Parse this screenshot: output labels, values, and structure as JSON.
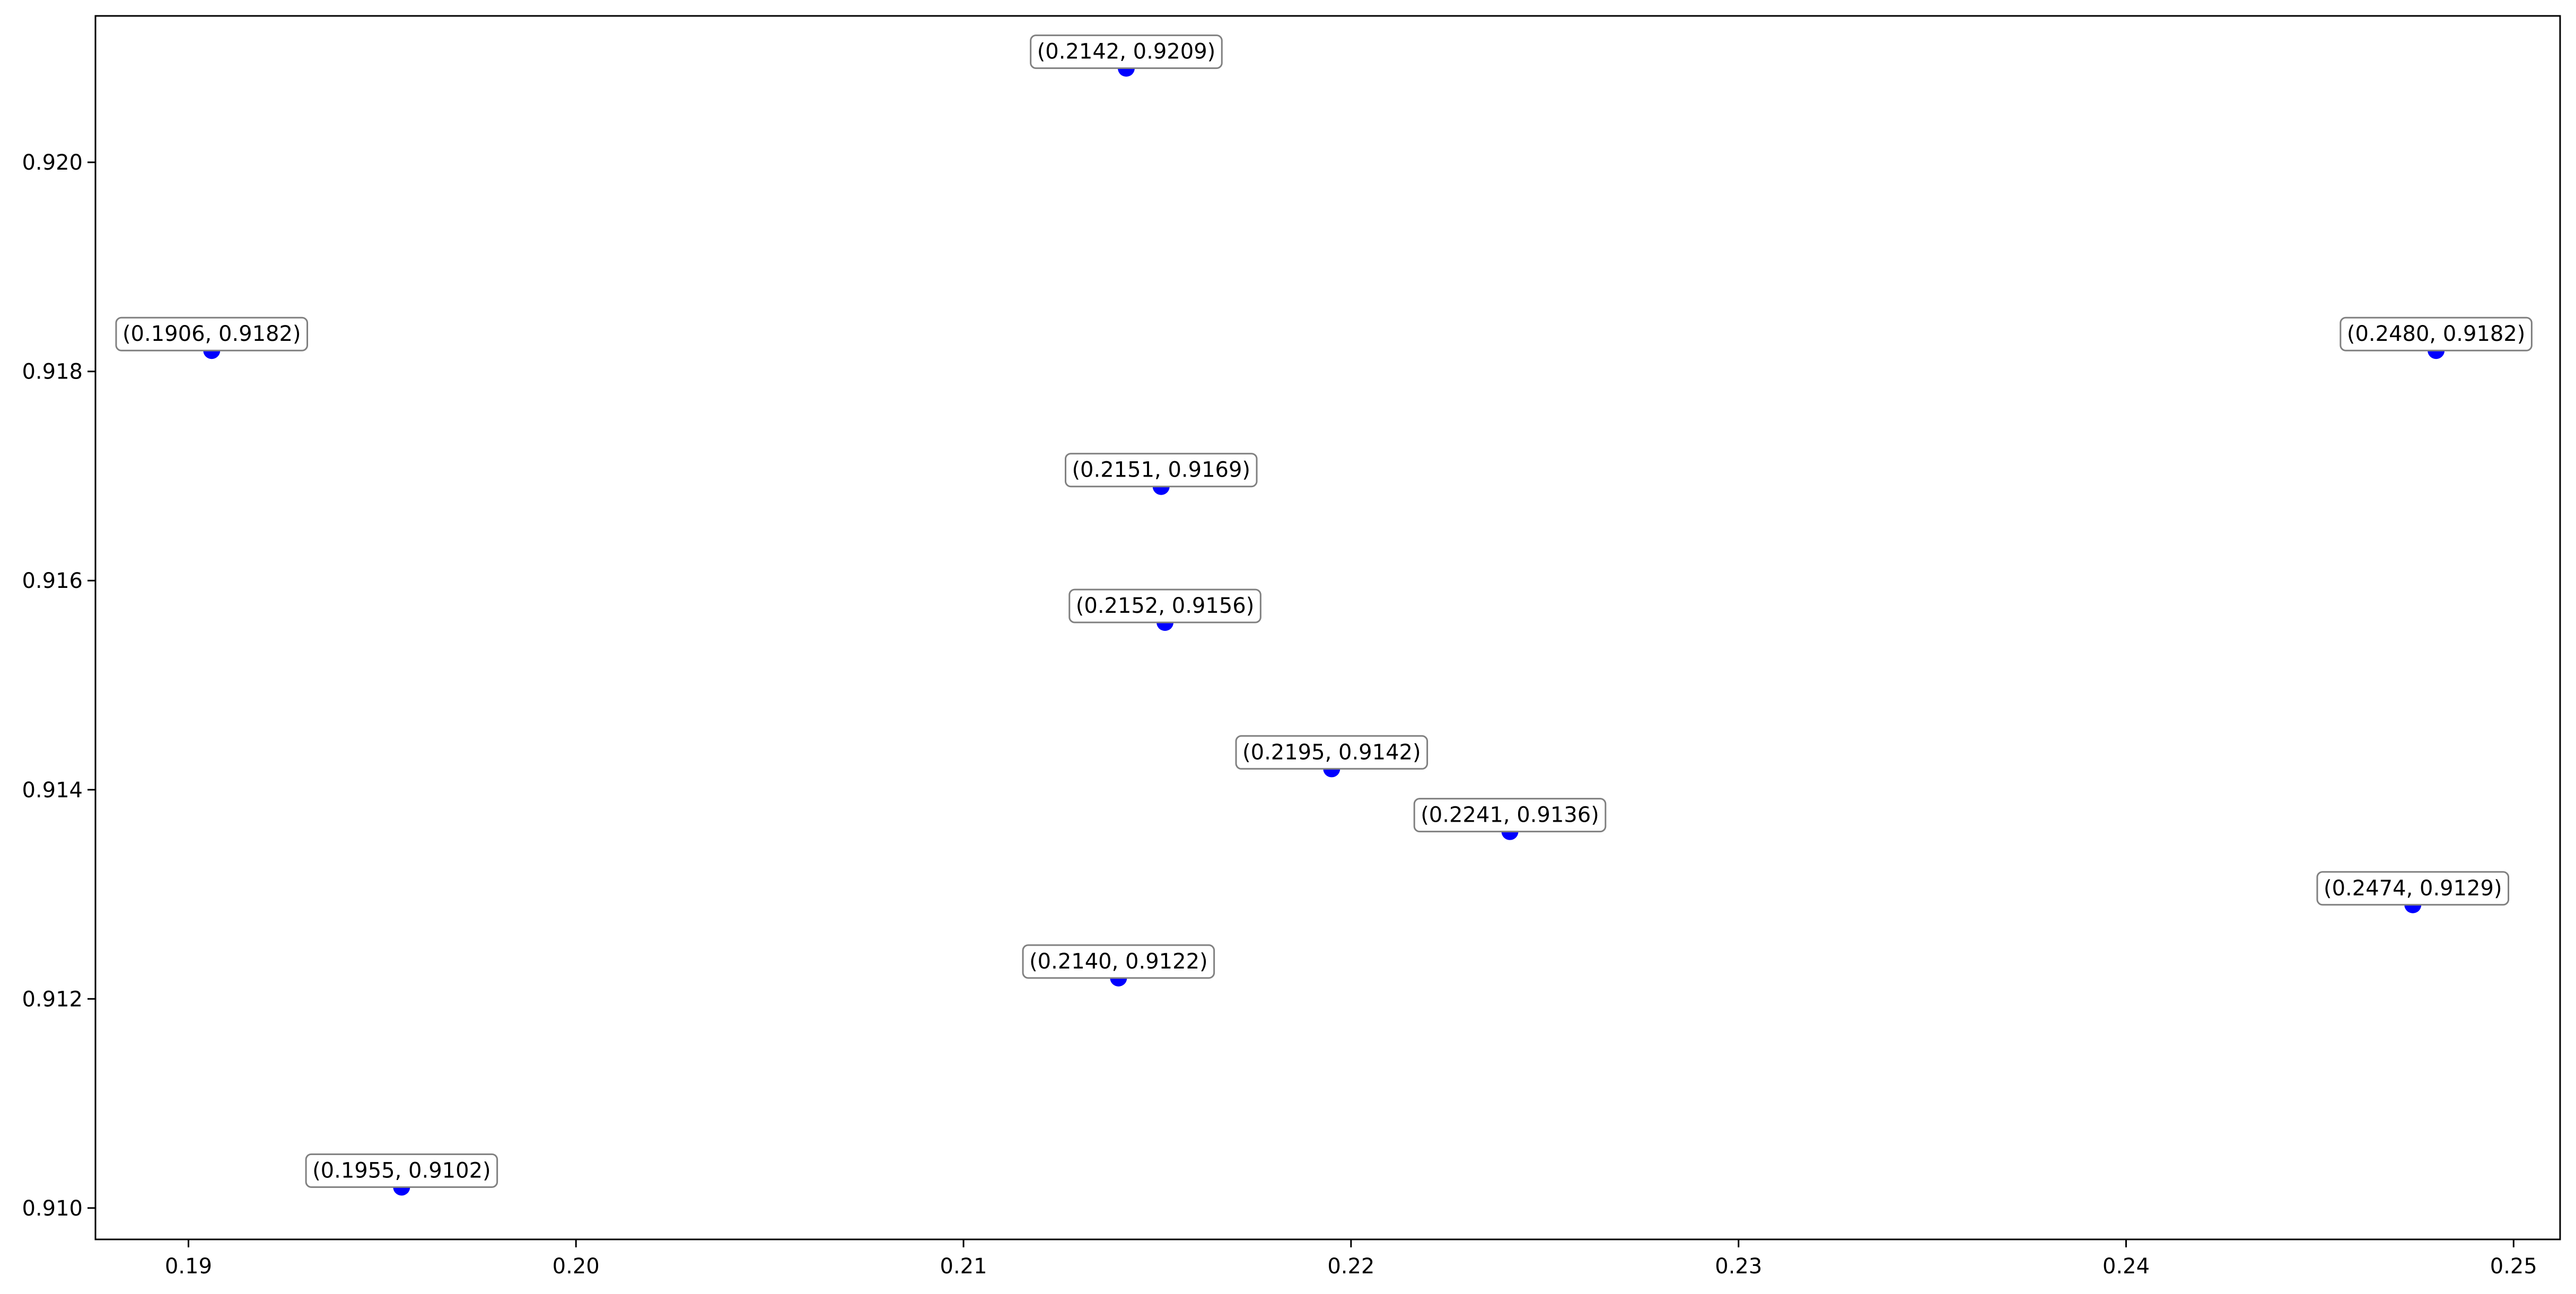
{
  "chart_data": {
    "type": "scatter",
    "title": "",
    "xlabel": "",
    "ylabel": "",
    "xlim": [
      0.1876,
      0.2512
    ],
    "ylim": [
      0.9097,
      0.9214
    ],
    "grid": false,
    "legend": "none",
    "marker_color": "#0000ff",
    "x_ticks": [
      {
        "value": 0.19,
        "label": "0.19"
      },
      {
        "value": 0.2,
        "label": "0.20"
      },
      {
        "value": 0.21,
        "label": "0.21"
      },
      {
        "value": 0.22,
        "label": "0.22"
      },
      {
        "value": 0.23,
        "label": "0.23"
      },
      {
        "value": 0.24,
        "label": "0.24"
      },
      {
        "value": 0.25,
        "label": "0.25"
      }
    ],
    "y_ticks": [
      {
        "value": 0.91,
        "label": "0.910"
      },
      {
        "value": 0.912,
        "label": "0.912"
      },
      {
        "value": 0.914,
        "label": "0.914"
      },
      {
        "value": 0.916,
        "label": "0.916"
      },
      {
        "value": 0.918,
        "label": "0.918"
      },
      {
        "value": 0.92,
        "label": "0.920"
      }
    ],
    "points": [
      {
        "x": 0.2142,
        "y": 0.9209,
        "label": "(0.2142, 0.9209)"
      },
      {
        "x": 0.1906,
        "y": 0.9182,
        "label": "(0.1906, 0.9182)"
      },
      {
        "x": 0.248,
        "y": 0.9182,
        "label": "(0.2480, 0.9182)"
      },
      {
        "x": 0.2151,
        "y": 0.9169,
        "label": "(0.2151, 0.9169)"
      },
      {
        "x": 0.2152,
        "y": 0.9156,
        "label": "(0.2152, 0.9156)"
      },
      {
        "x": 0.2195,
        "y": 0.9142,
        "label": "(0.2195, 0.9142)"
      },
      {
        "x": 0.2241,
        "y": 0.9136,
        "label": "(0.2241, 0.9136)"
      },
      {
        "x": 0.2474,
        "y": 0.9129,
        "label": "(0.2474, 0.9129)"
      },
      {
        "x": 0.214,
        "y": 0.9122,
        "label": "(0.2140, 0.9122)"
      },
      {
        "x": 0.1955,
        "y": 0.9102,
        "label": "(0.1955, 0.9102)"
      }
    ]
  }
}
